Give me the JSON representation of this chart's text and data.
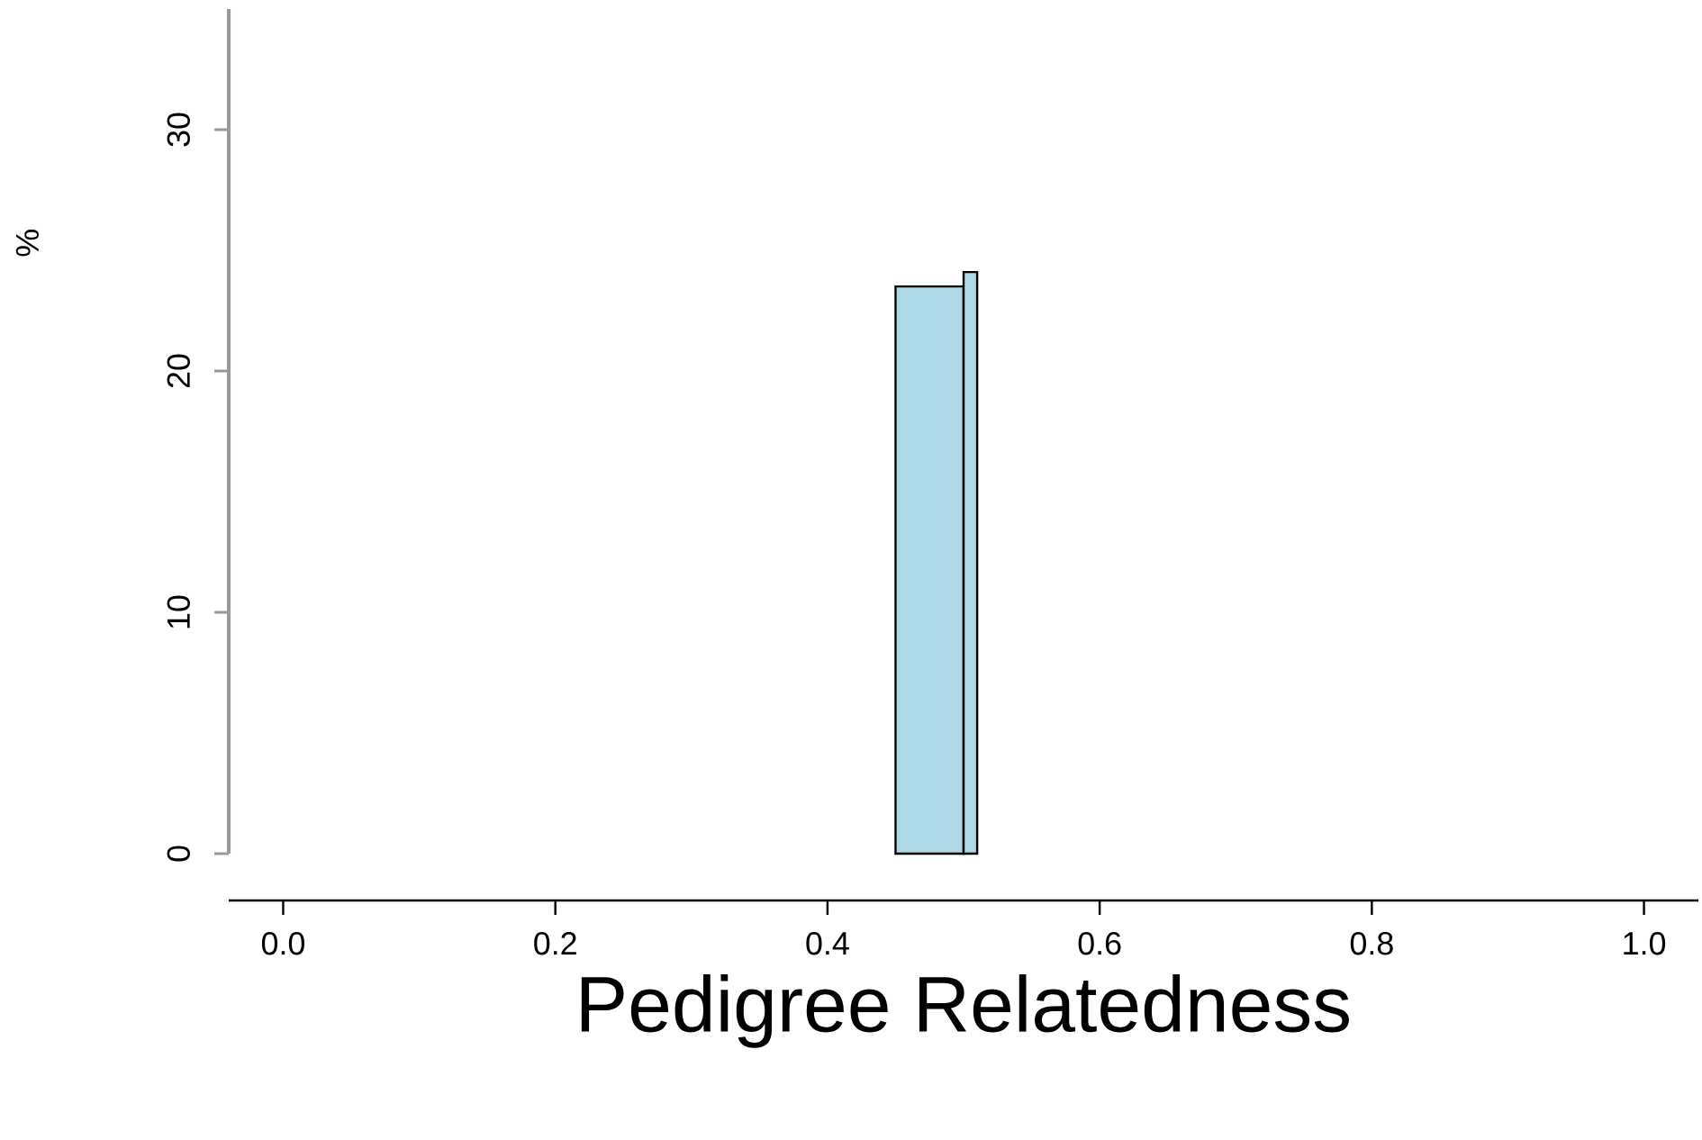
{
  "chart_data": {
    "type": "histogram",
    "xlabel": "Pedigree Relatedness",
    "ylabel": "%",
    "bins": [
      0.45,
      0.5,
      0.51
    ],
    "values": [
      23.5,
      24.1
    ],
    "color": "#add8e6",
    "xlim": [
      -0.04,
      1.04
    ],
    "ylim": [
      0,
      35
    ],
    "xticks": [
      {
        "value": 0,
        "label": "0.0"
      },
      0.2,
      0.4,
      0.6,
      0.8,
      {
        "value": 1,
        "label": "1.0"
      }
    ],
    "yticks": [
      0,
      10,
      20,
      30
    ]
  }
}
